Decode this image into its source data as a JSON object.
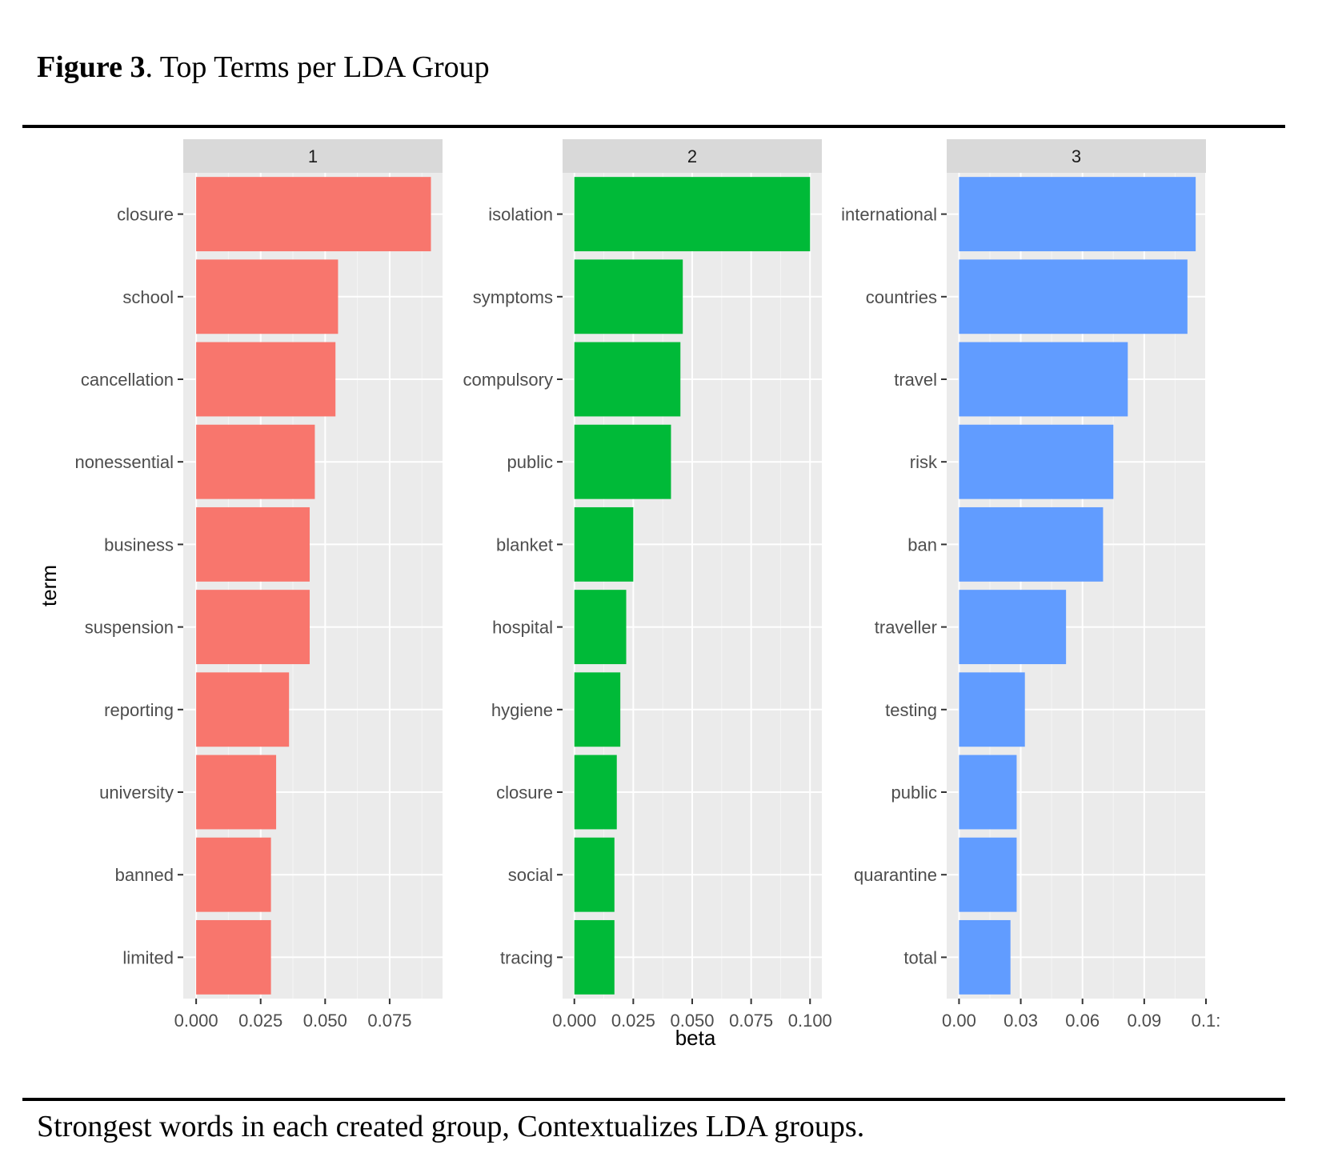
{
  "figure": {
    "label": "Figure 3",
    "title_rest": ". Top Terms per LDA Group",
    "caption": "Strongest words in each created group, Contextualizes LDA groups."
  },
  "chart_data": {
    "type": "bar",
    "orientation": "horizontal",
    "faceted": true,
    "xlabel": "beta",
    "ylabel": "term",
    "facets": [
      {
        "strip": "1",
        "color": "#F8766D",
        "terms": [
          "closure",
          "school",
          "cancellation",
          "nonessential",
          "business",
          "suspension",
          "reporting",
          "university",
          "banned",
          "limited"
        ],
        "values": [
          0.091,
          0.055,
          0.054,
          0.046,
          0.044,
          0.044,
          0.036,
          0.031,
          0.029,
          0.029
        ],
        "xlim": [
          -0.005,
          0.0955
        ],
        "ticks": [
          0,
          0.025,
          0.05,
          0.075
        ],
        "tick_labels": [
          "0.000",
          "0.025",
          "0.050",
          "0.075"
        ]
      },
      {
        "strip": "2",
        "color": "#00BA38",
        "terms": [
          "isolation",
          "symptoms",
          "compulsory",
          "public",
          "blanket",
          "hospital",
          "hygiene",
          "closure",
          "social",
          "tracing"
        ],
        "values": [
          0.1,
          0.046,
          0.045,
          0.041,
          0.025,
          0.022,
          0.0195,
          0.018,
          0.017,
          0.017
        ],
        "xlim": [
          -0.005,
          0.105
        ],
        "ticks": [
          0,
          0.025,
          0.05,
          0.075,
          0.1
        ],
        "tick_labels": [
          "0.000",
          "0.025",
          "0.050",
          "0.075",
          "0.100"
        ]
      },
      {
        "strip": "3",
        "color": "#619CFF",
        "terms": [
          "international",
          "countries",
          "travel",
          "risk",
          "ban",
          "traveller",
          "testing",
          "public",
          "quarantine",
          "total"
        ],
        "values": [
          0.115,
          0.111,
          0.082,
          0.075,
          0.07,
          0.052,
          0.032,
          0.028,
          0.028,
          0.025
        ],
        "xlim": [
          -0.006,
          0.12
        ],
        "ticks": [
          0,
          0.03,
          0.06,
          0.09,
          0.12
        ],
        "tick_labels": [
          "0.00",
          "0.03",
          "0.06",
          "0.09",
          "0.1:"
        ]
      }
    ]
  }
}
